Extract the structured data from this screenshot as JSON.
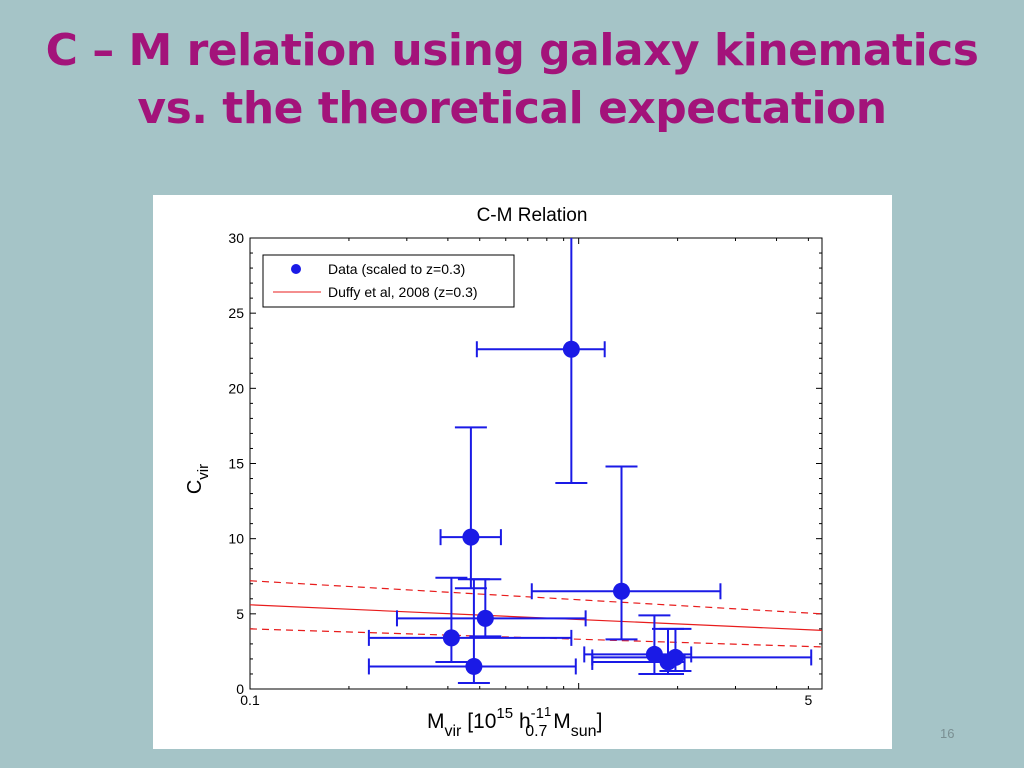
{
  "slide": {
    "title_line1": "C – M relation using galaxy kinematics",
    "title_line2": "vs. the theoretical expectation",
    "page_number": "16",
    "title_color": "#a3137a",
    "background_color": "#a5c4c7"
  },
  "chart_data": {
    "type": "scatter",
    "title": "C-M Relation",
    "xlabel": {
      "main": "M",
      "main_sub": "vir",
      "bracket_open": " [10",
      "exp15": "15",
      "h": " h",
      "h_sup": "-1",
      "h_sub": "0.7",
      "exp1": "1",
      "msun": " M",
      "msun_sub": "sun",
      "bracket_close": "]"
    },
    "ylabel": {
      "main": "C",
      "sub": "vir"
    },
    "x_scale": "log",
    "xlim": [
      0.1,
      5.5
    ],
    "ylim": [
      0,
      30
    ],
    "x_ticks": [
      {
        "value": 0.1,
        "label": "0.1"
      },
      {
        "value": 5,
        "label": "5"
      }
    ],
    "y_ticks": [
      {
        "value": 0,
        "label": "0"
      },
      {
        "value": 5,
        "label": "5"
      },
      {
        "value": 10,
        "label": "10"
      },
      {
        "value": 15,
        "label": "15"
      },
      {
        "value": 20,
        "label": "20"
      },
      {
        "value": 25,
        "label": "25"
      },
      {
        "value": 30,
        "label": "30"
      }
    ],
    "legend_position": "top-left",
    "legend": [
      {
        "label": "Data (scaled to z=0.3)",
        "kind": "marker"
      },
      {
        "label": "Duffy et al, 2008 (z=0.3)",
        "kind": "line"
      }
    ],
    "series": [
      {
        "name": "Data (scaled to z=0.3)",
        "color": "#1a1ae6",
        "points": [
          {
            "x": 0.95,
            "y": 22.6,
            "xlo": 0.49,
            "xhi": 1.2,
            "ylo": 13.7,
            "yhi": 30.0
          },
          {
            "x": 0.47,
            "y": 10.1,
            "xlo": 0.38,
            "xhi": 0.58,
            "ylo": 6.7,
            "yhi": 17.4
          },
          {
            "x": 1.35,
            "y": 6.5,
            "xlo": 0.72,
            "xhi": 2.7,
            "ylo": 3.3,
            "yhi": 14.8
          },
          {
            "x": 0.52,
            "y": 4.7,
            "xlo": 0.28,
            "xhi": 1.05,
            "ylo": 3.5,
            "yhi": 7.3
          },
          {
            "x": 0.41,
            "y": 3.4,
            "xlo": 0.23,
            "xhi": 0.95,
            "ylo": 1.8,
            "yhi": 7.4
          },
          {
            "x": 0.48,
            "y": 1.5,
            "xlo": 0.23,
            "xhi": 0.98,
            "ylo": 0.4,
            "yhi": 7.3
          },
          {
            "x": 1.7,
            "y": 2.3,
            "xlo": 1.04,
            "xhi": 2.2,
            "ylo": 1.0,
            "yhi": 4.9
          },
          {
            "x": 1.87,
            "y": 1.8,
            "xlo": 1.1,
            "xhi": 2.1,
            "ylo": 1.0,
            "yhi": 4.0
          },
          {
            "x": 1.97,
            "y": 2.1,
            "xlo": 1.1,
            "xhi": 5.1,
            "ylo": 1.2,
            "yhi": 4.0
          }
        ]
      },
      {
        "name": "Duffy et al, 2008 (z=0.3)",
        "color": "#e81c1c",
        "line": [
          {
            "x": 0.1,
            "y": 5.6
          },
          {
            "x": 5.5,
            "y": 3.9
          }
        ],
        "upper_band": [
          {
            "x": 0.1,
            "y": 7.2
          },
          {
            "x": 5.5,
            "y": 5.0
          }
        ],
        "lower_band": [
          {
            "x": 0.1,
            "y": 4.0
          },
          {
            "x": 5.5,
            "y": 2.8
          }
        ]
      }
    ]
  }
}
